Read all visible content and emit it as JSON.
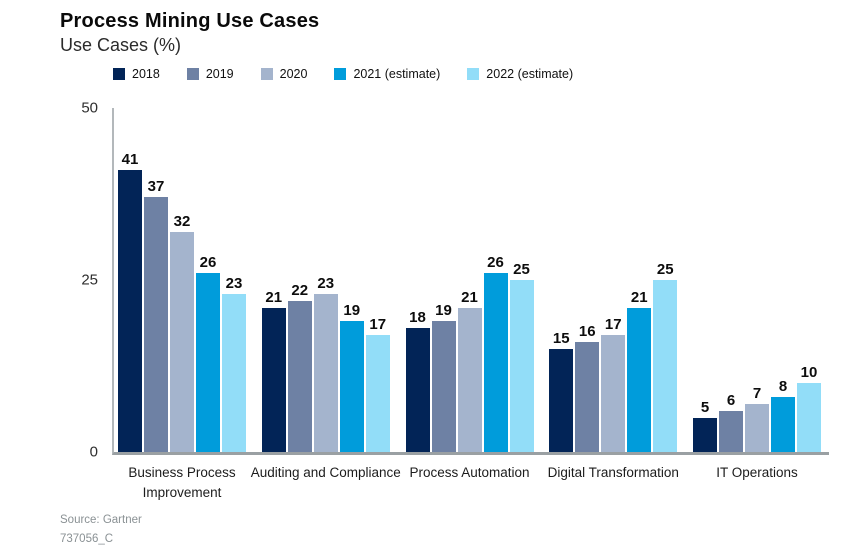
{
  "header": {
    "title": "Process Mining Use Cases",
    "subtitle": "Use Cases (%)"
  },
  "footer": {
    "source": "Source: Gartner",
    "doc_id": "737056_C"
  },
  "colors": {
    "axis_line": "#b3b8bb",
    "baseline": "#9aa0a3",
    "series_2018": "#022457",
    "series_2019": "#6E81A4",
    "series_2020": "#A4B4CD",
    "series_2021": "#009CDB",
    "series_2022": "#92DDF8"
  },
  "chart_data": {
    "type": "bar",
    "title": "Process Mining Use Cases",
    "subtitle": "Use Cases (%)",
    "xlabel": "",
    "ylabel": "Use Cases (%)",
    "ylim": [
      0,
      50
    ],
    "yticks": [
      0,
      25,
      50
    ],
    "grid": false,
    "legend_position": "top",
    "categories": [
      "Business Process Improvement",
      "Auditing and Compliance",
      "Process Automation",
      "Digital Transformation",
      "IT Operations"
    ],
    "series": [
      {
        "name": "2018",
        "color": "#022457",
        "values": [
          41,
          21,
          18,
          15,
          5
        ]
      },
      {
        "name": "2019",
        "color": "#6E81A4",
        "values": [
          37,
          22,
          19,
          16,
          6
        ]
      },
      {
        "name": "2020",
        "color": "#A4B4CD",
        "values": [
          32,
          23,
          21,
          17,
          7
        ]
      },
      {
        "name": "2021 (estimate)",
        "color": "#009CDB",
        "values": [
          26,
          19,
          26,
          21,
          8
        ]
      },
      {
        "name": "2022 (estimate)",
        "color": "#92DDF8",
        "values": [
          23,
          17,
          25,
          25,
          10
        ]
      }
    ]
  }
}
